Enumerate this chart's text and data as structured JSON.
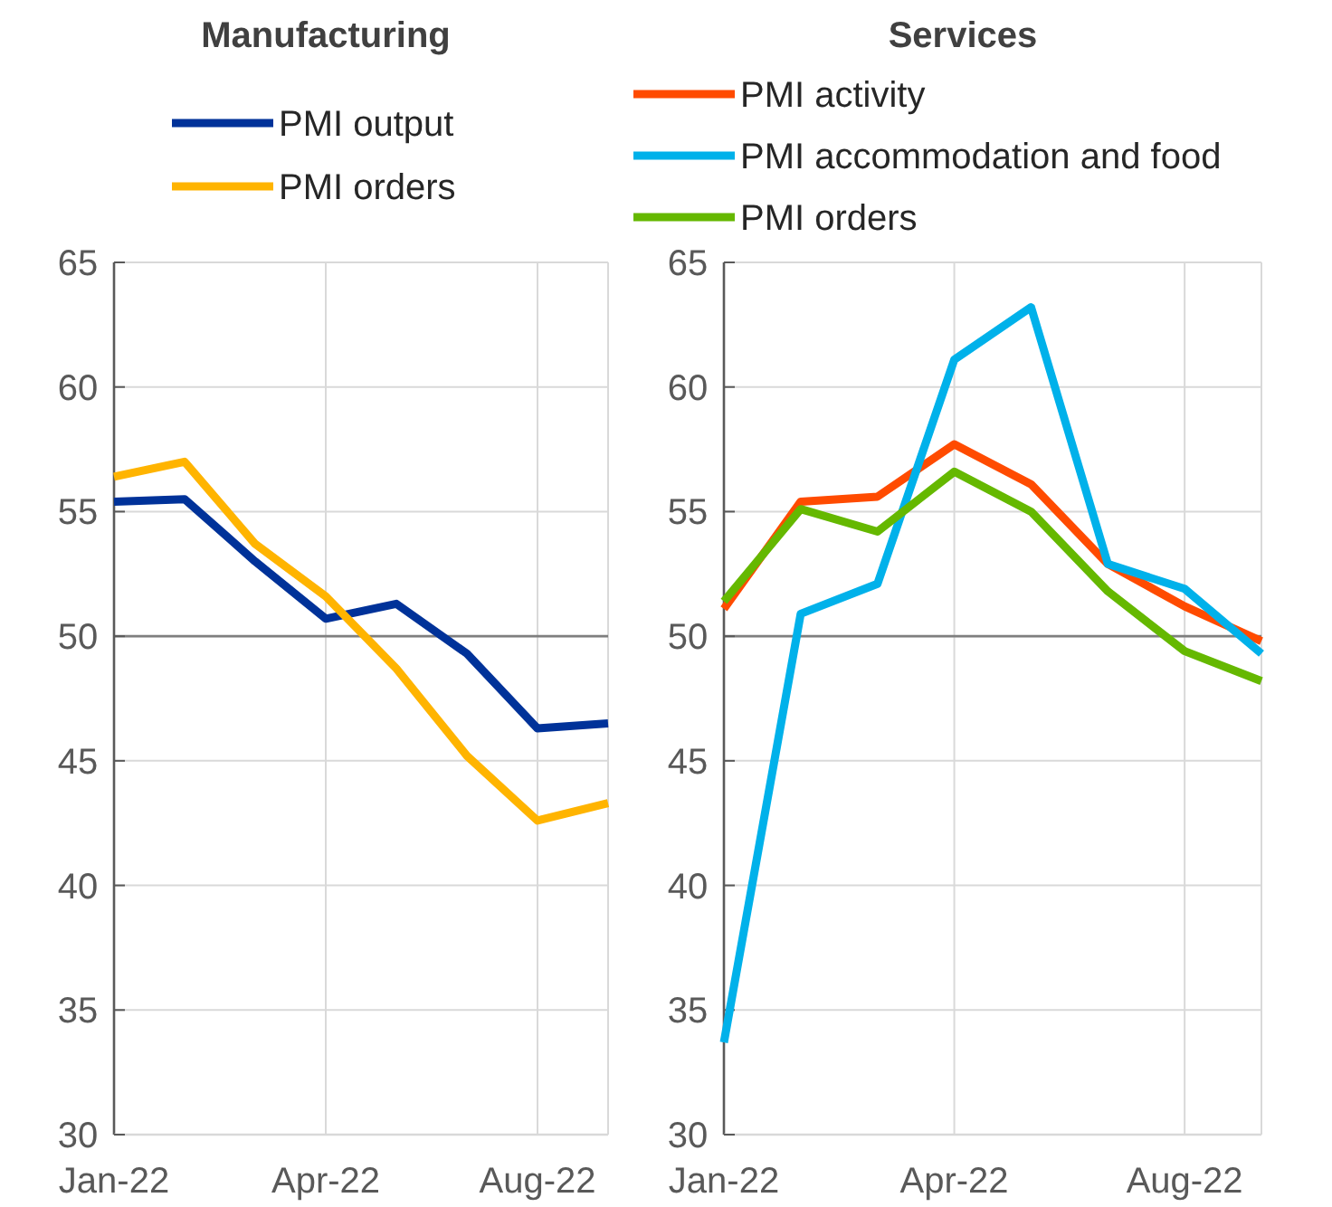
{
  "chart_data": [
    {
      "type": "line",
      "title": "Manufacturing",
      "categories": [
        "Jan-22",
        null,
        null,
        "Apr-22",
        null,
        null,
        "Aug-22",
        null
      ],
      "ylim": [
        30,
        65
      ],
      "yticks": [
        30,
        35,
        40,
        45,
        50,
        55,
        60,
        65
      ],
      "grid": true,
      "legend": "top",
      "ref_lines": [
        {
          "axis": "y",
          "value": 50,
          "color": "#7f7f7f"
        }
      ],
      "series": [
        {
          "name": "PMI output",
          "color": "#003299",
          "values": [
            55.4,
            55.5,
            53.0,
            50.7,
            51.3,
            49.3,
            46.3,
            46.5
          ]
        },
        {
          "name": "PMI orders",
          "color": "#ffb400",
          "values": [
            56.4,
            57.0,
            53.7,
            51.6,
            48.7,
            45.2,
            42.6,
            43.3
          ]
        }
      ]
    },
    {
      "type": "line",
      "title": "Services",
      "categories": [
        "Jan-22",
        null,
        null,
        "Apr-22",
        null,
        null,
        "Aug-22",
        null
      ],
      "ylim": [
        30,
        65
      ],
      "yticks": [
        30,
        35,
        40,
        45,
        50,
        55,
        60,
        65
      ],
      "grid": true,
      "legend": "top",
      "ref_lines": [
        {
          "axis": "y",
          "value": 50,
          "color": "#7f7f7f"
        }
      ],
      "series": [
        {
          "name": "PMI activity",
          "color": "#ff4b00",
          "values": [
            51.1,
            55.4,
            55.6,
            57.7,
            56.1,
            52.9,
            51.2,
            49.8
          ]
        },
        {
          "name": "PMI accommodation and food",
          "color": "#00b1ea",
          "values": [
            33.7,
            50.9,
            52.1,
            61.1,
            63.2,
            52.9,
            51.9,
            49.3
          ]
        },
        {
          "name": "PMI orders",
          "color": "#65b800",
          "values": [
            51.4,
            55.1,
            54.2,
            56.6,
            55.0,
            51.8,
            49.4,
            48.2
          ]
        }
      ]
    }
  ]
}
